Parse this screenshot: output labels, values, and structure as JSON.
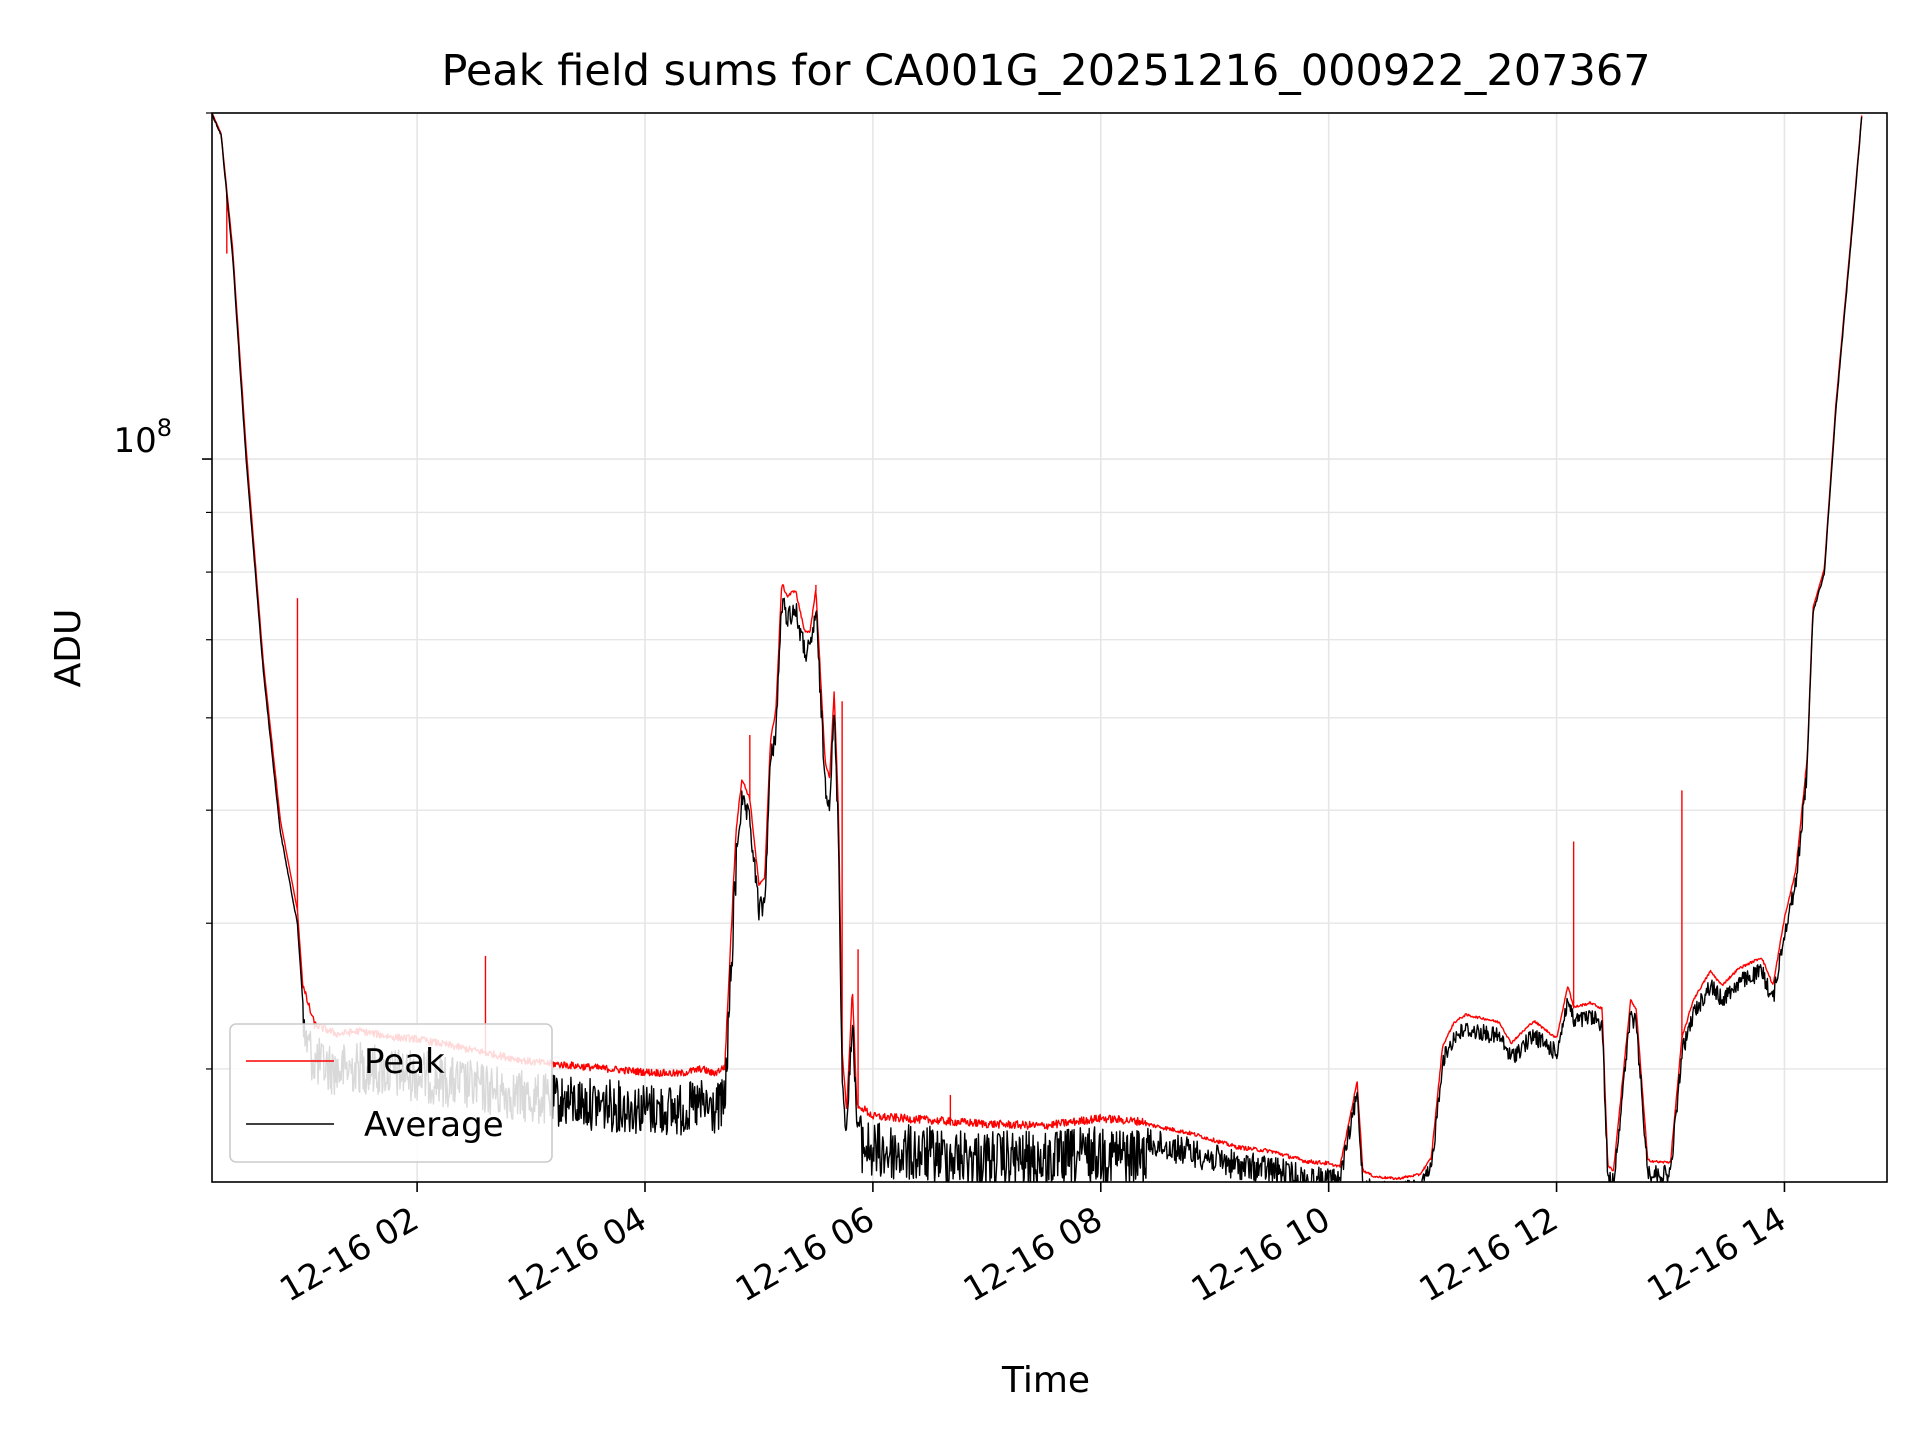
{
  "chart_data": {
    "type": "line",
    "title": "Peak field sums for CA001G_20251216_000922_207367",
    "xlabel": "Time",
    "ylabel": "ADU",
    "yscale": "log",
    "ylim": [
      24000000,
      198000000
    ],
    "xlim_hours": [
      0.2,
      14.9
    ],
    "x_tick_labels": [
      "12-16 02",
      "12-16 04",
      "12-16 06",
      "12-16 08",
      "12-16 10",
      "12-16 12",
      "12-16 14"
    ],
    "x_tick_hours": [
      2,
      4,
      6,
      8,
      10,
      12,
      14
    ],
    "y_major_tick_label": "10^8",
    "y_major_tick_base": "10",
    "y_major_tick_exp": "8",
    "y_major_tick_value": 100000000,
    "y_minor_ticks": [
      30000000,
      40000000,
      50000000,
      60000000,
      70000000,
      80000000,
      90000000
    ],
    "grid": true,
    "legend_position": "lower-left",
    "series": [
      {
        "name": "Average",
        "color": "#000000",
        "x_hours": [
          0.2,
          0.28,
          0.38,
          0.5,
          0.65,
          0.8,
          0.95,
          1.0,
          1.1,
          1.3,
          1.5,
          1.8,
          2.0,
          2.5,
          3.0,
          3.5,
          4.0,
          4.3,
          4.5,
          4.6,
          4.7,
          4.8,
          4.85,
          4.92,
          5.0,
          5.05,
          5.1,
          5.15,
          5.2,
          5.25,
          5.32,
          5.4,
          5.45,
          5.5,
          5.58,
          5.62,
          5.66,
          5.7,
          5.73,
          5.77,
          5.82,
          5.86,
          5.92,
          6.0,
          6.5,
          7.0,
          7.5,
          8.0,
          8.4,
          8.8,
          9.2,
          9.5,
          9.8,
          10.0,
          10.1,
          10.25,
          10.3,
          10.4,
          10.6,
          10.8,
          10.9,
          11.0,
          11.1,
          11.2,
          11.4,
          11.5,
          11.6,
          11.8,
          12.0,
          12.1,
          12.15,
          12.3,
          12.4,
          12.45,
          12.5,
          12.65,
          12.7,
          12.8,
          12.9,
          13.0,
          13.1,
          13.2,
          13.35,
          13.45,
          13.6,
          13.8,
          13.9,
          14.0,
          14.1,
          14.2,
          14.25,
          14.35,
          14.45,
          14.6,
          14.68
        ],
        "values": [
          198000000,
          190000000,
          150000000,
          100000000,
          66000000,
          48000000,
          40000000,
          34000000,
          32000000,
          31500000,
          31700000,
          31300000,
          31200000,
          30500000,
          29800000,
          29500000,
          29200000,
          29100000,
          29400000,
          29100000,
          29500000,
          47000000,
          52000000,
          50000000,
          42000000,
          42500000,
          56000000,
          60000000,
          77000000,
          75000000,
          76000000,
          70000000,
          70000000,
          76000000,
          54000000,
          52000000,
          62000000,
          48000000,
          30000000,
          27000000,
          34000000,
          27500000,
          27300000,
          27000000,
          26800000,
          26600000,
          26500000,
          26900000,
          26700000,
          26200000,
          25500000,
          25300000,
          24800000,
          24700000,
          24600000,
          29000000,
          24400000,
          24100000,
          24000000,
          24200000,
          25000000,
          31000000,
          32500000,
          33000000,
          32700000,
          32500000,
          31200000,
          32600000,
          31500000,
          35000000,
          33500000,
          33800000,
          33400000,
          24600000,
          24400000,
          34000000,
          33300000,
          24900000,
          24800000,
          24800000,
          31500000,
          34000000,
          36000000,
          35000000,
          36200000,
          37000000,
          35000000,
          40000000,
          44000000,
          55000000,
          74000000,
          80000000,
          110000000,
          160000000,
          198000000
        ]
      },
      {
        "name": "Peak",
        "color": "#ff0000",
        "x_hours": [
          0.2,
          0.28,
          0.38,
          0.5,
          0.65,
          0.8,
          0.95,
          1.0,
          1.1,
          1.3,
          1.5,
          1.8,
          2.0,
          2.5,
          3.0,
          3.5,
          4.0,
          4.3,
          4.5,
          4.6,
          4.7,
          4.8,
          4.85,
          4.92,
          5.0,
          5.05,
          5.1,
          5.15,
          5.2,
          5.25,
          5.32,
          5.4,
          5.45,
          5.5,
          5.58,
          5.62,
          5.66,
          5.7,
          5.73,
          5.77,
          5.82,
          5.86,
          5.92,
          6.0,
          6.5,
          7.0,
          7.5,
          8.0,
          8.4,
          8.8,
          9.2,
          9.5,
          9.8,
          10.0,
          10.1,
          10.25,
          10.3,
          10.4,
          10.6,
          10.8,
          10.9,
          11.0,
          11.1,
          11.2,
          11.4,
          11.5,
          11.6,
          11.8,
          12.0,
          12.1,
          12.15,
          12.3,
          12.4,
          12.45,
          12.5,
          12.65,
          12.7,
          12.8,
          12.9,
          13.0,
          13.1,
          13.2,
          13.35,
          13.45,
          13.6,
          13.8,
          13.9,
          14.0,
          14.1,
          14.2,
          14.25,
          14.35,
          14.45,
          14.6,
          14.68
        ],
        "values": [
          198000000,
          190000000,
          152000000,
          102000000,
          67000000,
          49000000,
          41000000,
          35000000,
          32500000,
          31900000,
          32100000,
          31700000,
          31600000,
          30900000,
          30200000,
          29900000,
          29600000,
          29500000,
          29800000,
          29500000,
          29900000,
          48000000,
          53000000,
          51000000,
          43000000,
          43500000,
          57000000,
          61000000,
          78000000,
          76000000,
          77000000,
          71000000,
          71000000,
          77000000,
          55000000,
          53000000,
          63000000,
          49000000,
          31000000,
          27500000,
          35000000,
          27800000,
          27500000,
          27100000,
          26900000,
          26700000,
          26600000,
          27000000,
          26800000,
          26300000,
          25600000,
          25400000,
          24900000,
          24800000,
          24700000,
          29200000,
          24500000,
          24200000,
          24100000,
          24300000,
          25100000,
          31300000,
          32800000,
          33300000,
          33000000,
          32800000,
          31500000,
          32900000,
          31800000,
          35300000,
          33800000,
          34100000,
          33700000,
          24700000,
          24500000,
          34300000,
          33600000,
          25000000,
          24900000,
          24900000,
          31800000,
          34300000,
          36300000,
          35300000,
          36500000,
          37300000,
          35300000,
          40300000,
          44300000,
          55300000,
          74500000,
          80500000,
          111000000,
          161000000,
          198000000
        ]
      }
    ],
    "peak_spikes": [
      {
        "x_hours": 0.33,
        "value": 150000000
      },
      {
        "x_hours": 0.95,
        "value": 76000000
      },
      {
        "x_hours": 1.98,
        "value": 32000000
      },
      {
        "x_hours": 2.6,
        "value": 37500000
      },
      {
        "x_hours": 4.92,
        "value": 58000000
      },
      {
        "x_hours": 5.5,
        "value": 78000000
      },
      {
        "x_hours": 5.73,
        "value": 62000000
      },
      {
        "x_hours": 5.87,
        "value": 38000000
      },
      {
        "x_hours": 6.68,
        "value": 28500000
      },
      {
        "x_hours": 12.15,
        "value": 47000000
      },
      {
        "x_hours": 13.1,
        "value": 52000000
      }
    ]
  }
}
